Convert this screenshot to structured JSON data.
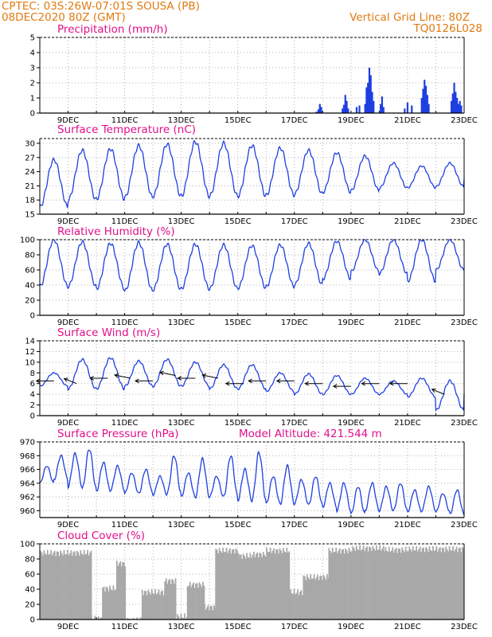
{
  "header": {
    "line1_left": "CPTEC:  03S:26W-07:01S  SOUSA (PB)",
    "line2_left": "08DEC2020 80Z (GMT)",
    "line1_right": "Vertical Grid Line: 80Z",
    "line2_right": "TQ0126L028"
  },
  "colors": {
    "header": "#e07a10",
    "panel_title": "#e0108a",
    "series": "#1f3fe0",
    "cloud": "#a8a8a8",
    "grid": "#b0b0b0"
  },
  "chart_data": [
    {
      "id": "precip",
      "type": "bar",
      "title": "Precipitation (mm/h)",
      "ylim": [
        0,
        5
      ],
      "yticks": [
        0,
        1,
        2,
        3,
        4,
        5
      ],
      "xticks": [
        "9DEC",
        "11DEC",
        "13DEC",
        "15DEC",
        "17DEC",
        "19DEC",
        "21DEC",
        "23DEC"
      ],
      "x_day_range": [
        8,
        23
      ],
      "bars": [
        {
          "d": 17.78,
          "v": 0.1
        },
        {
          "d": 17.85,
          "v": 0.25
        },
        {
          "d": 17.9,
          "v": 0.6
        },
        {
          "d": 17.95,
          "v": 0.4
        },
        {
          "d": 18.7,
          "v": 0.3
        },
        {
          "d": 18.75,
          "v": 0.55
        },
        {
          "d": 18.8,
          "v": 1.2
        },
        {
          "d": 18.85,
          "v": 0.8
        },
        {
          "d": 18.9,
          "v": 0.3
        },
        {
          "d": 19.2,
          "v": 0.4
        },
        {
          "d": 19.3,
          "v": 0.5
        },
        {
          "d": 19.5,
          "v": 0.6
        },
        {
          "d": 19.55,
          "v": 1.7
        },
        {
          "d": 19.6,
          "v": 2.0
        },
        {
          "d": 19.65,
          "v": 3.0
        },
        {
          "d": 19.7,
          "v": 2.5
        },
        {
          "d": 19.75,
          "v": 1.4
        },
        {
          "d": 19.8,
          "v": 0.8
        },
        {
          "d": 20.05,
          "v": 0.6
        },
        {
          "d": 20.1,
          "v": 1.1
        },
        {
          "d": 20.15,
          "v": 0.4
        },
        {
          "d": 20.9,
          "v": 0.3
        },
        {
          "d": 21.0,
          "v": 0.7
        },
        {
          "d": 21.15,
          "v": 0.5
        },
        {
          "d": 21.5,
          "v": 1.0
        },
        {
          "d": 21.55,
          "v": 1.6
        },
        {
          "d": 21.6,
          "v": 2.2
        },
        {
          "d": 21.65,
          "v": 1.8
        },
        {
          "d": 21.7,
          "v": 1.2
        },
        {
          "d": 21.75,
          "v": 0.6
        },
        {
          "d": 22.55,
          "v": 0.8
        },
        {
          "d": 22.6,
          "v": 1.3
        },
        {
          "d": 22.65,
          "v": 2.0
        },
        {
          "d": 22.7,
          "v": 1.4
        },
        {
          "d": 22.75,
          "v": 1.0
        },
        {
          "d": 22.8,
          "v": 0.6
        },
        {
          "d": 22.85,
          "v": 0.8
        },
        {
          "d": 22.9,
          "v": 0.5
        }
      ]
    },
    {
      "id": "temp",
      "type": "line",
      "title": "Surface Temperature (nC)",
      "ylim": [
        15,
        31
      ],
      "yticks": [
        15,
        18,
        21,
        24,
        27,
        30
      ],
      "xticks": [
        "9DEC",
        "11DEC",
        "13DEC",
        "15DEC",
        "17DEC",
        "19DEC",
        "21DEC",
        "23DEC"
      ],
      "x_day_range": [
        8,
        23
      ],
      "daily": [
        {
          "day": 8,
          "max": 26.5,
          "min": 16.5
        },
        {
          "day": 9,
          "max": 28.5,
          "min": 18.0
        },
        {
          "day": 10,
          "max": 28.8,
          "min": 18.2
        },
        {
          "day": 11,
          "max": 29.5,
          "min": 18.5
        },
        {
          "day": 12,
          "max": 29.8,
          "min": 18.8
        },
        {
          "day": 13,
          "max": 30.3,
          "min": 18.8
        },
        {
          "day": 14,
          "max": 30.0,
          "min": 18.8
        },
        {
          "day": 15,
          "max": 29.5,
          "min": 18.8
        },
        {
          "day": 16,
          "max": 29.0,
          "min": 19.0
        },
        {
          "day": 17,
          "max": 28.5,
          "min": 19.2
        },
        {
          "day": 18,
          "max": 28.0,
          "min": 19.6
        },
        {
          "day": 19,
          "max": 27.3,
          "min": 20.0
        },
        {
          "day": 20,
          "max": 25.8,
          "min": 20.5
        },
        {
          "day": 21,
          "max": 25.2,
          "min": 20.6
        },
        {
          "day": 22,
          "max": 25.8,
          "min": 20.8
        },
        {
          "day": 23,
          "max": 24.5,
          "min": 22.5
        }
      ]
    },
    {
      "id": "rh",
      "type": "line",
      "title": "Relative Humidity (%)",
      "ylim": [
        0,
        100
      ],
      "yticks": [
        0,
        20,
        40,
        60,
        80,
        100
      ],
      "xticks": [
        "9DEC",
        "11DEC",
        "13DEC",
        "15DEC",
        "17DEC",
        "19DEC",
        "21DEC",
        "23DEC"
      ],
      "x_day_range": [
        8,
        23
      ],
      "daily": [
        {
          "day": 8,
          "max": 100,
          "min": 38
        },
        {
          "day": 9,
          "max": 97,
          "min": 38
        },
        {
          "day": 10,
          "max": 95,
          "min": 35
        },
        {
          "day": 11,
          "max": 96,
          "min": 32
        },
        {
          "day": 12,
          "max": 94,
          "min": 34
        },
        {
          "day": 13,
          "max": 94,
          "min": 35
        },
        {
          "day": 14,
          "max": 93,
          "min": 35
        },
        {
          "day": 15,
          "max": 92,
          "min": 36
        },
        {
          "day": 16,
          "max": 93,
          "min": 38
        },
        {
          "day": 17,
          "max": 95,
          "min": 40
        },
        {
          "day": 18,
          "max": 98,
          "min": 48
        },
        {
          "day": 19,
          "max": 100,
          "min": 58
        },
        {
          "day": 20,
          "max": 100,
          "min": 55
        },
        {
          "day": 21,
          "max": 100,
          "min": 45
        },
        {
          "day": 22,
          "max": 100,
          "min": 60
        },
        {
          "day": 23,
          "max": 96,
          "min": 62
        }
      ]
    },
    {
      "id": "wind",
      "type": "line",
      "title": "Surface Wind (m/s)",
      "ylim": [
        0,
        14
      ],
      "yticks": [
        0,
        2,
        4,
        6,
        8,
        10,
        12,
        14
      ],
      "xticks": [
        "9DEC",
        "11DEC",
        "13DEC",
        "15DEC",
        "17DEC",
        "19DEC",
        "21DEC",
        "23DEC"
      ],
      "x_day_range": [
        8,
        23
      ],
      "daily": [
        {
          "day": 8,
          "max": 8.0,
          "min": 5.5
        },
        {
          "day": 9,
          "max": 10.5,
          "min": 5.0
        },
        {
          "day": 10,
          "max": 10.8,
          "min": 5.0
        },
        {
          "day": 11,
          "max": 10.2,
          "min": 5.5
        },
        {
          "day": 12,
          "max": 10.5,
          "min": 5.5
        },
        {
          "day": 13,
          "max": 10.0,
          "min": 5.5
        },
        {
          "day": 14,
          "max": 9.5,
          "min": 5.0
        },
        {
          "day": 15,
          "max": 9.5,
          "min": 5.0
        },
        {
          "day": 16,
          "max": 8.0,
          "min": 4.5
        },
        {
          "day": 17,
          "max": 7.8,
          "min": 4.0
        },
        {
          "day": 18,
          "max": 7.5,
          "min": 4.0
        },
        {
          "day": 19,
          "max": 7.0,
          "min": 4.0
        },
        {
          "day": 20,
          "max": 6.5,
          "min": 4.0
        },
        {
          "day": 21,
          "max": 7.0,
          "min": 3.5
        },
        {
          "day": 22,
          "max": 6.5,
          "min": 1.0
        },
        {
          "day": 23,
          "max": 6.0,
          "min": 4.0
        }
      ],
      "vectors": [
        {
          "d": 8.5,
          "v": 6.5,
          "dir": "W"
        },
        {
          "d": 9.3,
          "v": 6.0,
          "dir": "SW"
        },
        {
          "d": 10.4,
          "v": 7.0,
          "dir": "W"
        },
        {
          "d": 11.2,
          "v": 7.0,
          "dir": "NW"
        },
        {
          "d": 12.0,
          "v": 6.5,
          "dir": "W"
        },
        {
          "d": 12.8,
          "v": 7.5,
          "dir": "NW"
        },
        {
          "d": 13.5,
          "v": 7.0,
          "dir": "W"
        },
        {
          "d": 14.3,
          "v": 7.0,
          "dir": "NW"
        },
        {
          "d": 15.2,
          "v": 6.0,
          "dir": "W"
        },
        {
          "d": 16.0,
          "v": 6.5,
          "dir": "W"
        },
        {
          "d": 17.0,
          "v": 6.5,
          "dir": "W"
        },
        {
          "d": 18.0,
          "v": 6.0,
          "dir": "W"
        },
        {
          "d": 19.0,
          "v": 5.5,
          "dir": "W"
        },
        {
          "d": 20.0,
          "v": 6.0,
          "dir": "W"
        },
        {
          "d": 21.0,
          "v": 6.0,
          "dir": "W"
        },
        {
          "d": 22.3,
          "v": 4.0,
          "dir": "SW"
        }
      ]
    },
    {
      "id": "pres",
      "type": "line",
      "title": "Surface Pressure (hPa)",
      "annotation": "Model Altitude: 421.544 m",
      "ylim": [
        959,
        970
      ],
      "yticks": [
        960,
        962,
        964,
        966,
        968,
        970
      ],
      "xticks": [
        "9DEC",
        "11DEC",
        "13DEC",
        "15DEC",
        "17DEC",
        "19DEC",
        "21DEC",
        "23DEC"
      ],
      "x_day_range": [
        8,
        23
      ],
      "semi_daily": [
        {
          "day": 8.0,
          "max": 966.5,
          "min": 964.0
        },
        {
          "day": 8.5,
          "max": 968.0,
          "min": 964.5
        },
        {
          "day": 9.0,
          "max": 968.3,
          "min": 963.5
        },
        {
          "day": 9.5,
          "max": 969.0,
          "min": 963.2
        },
        {
          "day": 10.0,
          "max": 967.0,
          "min": 962.8
        },
        {
          "day": 10.5,
          "max": 966.5,
          "min": 963.0
        },
        {
          "day": 11.0,
          "max": 965.5,
          "min": 962.5
        },
        {
          "day": 11.5,
          "max": 966.0,
          "min": 962.5
        },
        {
          "day": 12.0,
          "max": 965.0,
          "min": 962.3
        },
        {
          "day": 12.5,
          "max": 968.0,
          "min": 962.5
        },
        {
          "day": 13.0,
          "max": 965.5,
          "min": 962.0
        },
        {
          "day": 13.5,
          "max": 967.5,
          "min": 962.0
        },
        {
          "day": 14.0,
          "max": 965.0,
          "min": 962.0
        },
        {
          "day": 14.5,
          "max": 968.0,
          "min": 962.0
        },
        {
          "day": 15.0,
          "max": 966.0,
          "min": 961.5
        },
        {
          "day": 15.5,
          "max": 968.5,
          "min": 961.5
        },
        {
          "day": 16.0,
          "max": 965.0,
          "min": 961.0
        },
        {
          "day": 16.5,
          "max": 966.5,
          "min": 961.0
        },
        {
          "day": 17.0,
          "max": 964.5,
          "min": 961.0
        },
        {
          "day": 17.5,
          "max": 965.0,
          "min": 960.8
        },
        {
          "day": 18.0,
          "max": 964.0,
          "min": 960.5
        },
        {
          "day": 18.5,
          "max": 964.0,
          "min": 960.0
        },
        {
          "day": 19.0,
          "max": 963.5,
          "min": 959.5
        },
        {
          "day": 19.5,
          "max": 964.0,
          "min": 960.0
        },
        {
          "day": 20.0,
          "max": 963.5,
          "min": 960.0
        },
        {
          "day": 20.5,
          "max": 964.0,
          "min": 960.0
        },
        {
          "day": 21.0,
          "max": 963.0,
          "min": 959.8
        },
        {
          "day": 21.5,
          "max": 963.5,
          "min": 960.0
        },
        {
          "day": 22.0,
          "max": 962.5,
          "min": 959.8
        },
        {
          "day": 22.5,
          "max": 963.0,
          "min": 959.5
        },
        {
          "day": 23.0,
          "max": 963.5,
          "min": 959.5
        }
      ]
    },
    {
      "id": "cloud",
      "type": "bar",
      "title": "Cloud Cover (%)",
      "ylim": [
        0,
        100
      ],
      "yticks": [
        0,
        20,
        40,
        60,
        80,
        100
      ],
      "xticks": [
        "9DEC",
        "11DEC",
        "13DEC",
        "15DEC",
        "17DEC",
        "19DEC",
        "21DEC",
        "23DEC"
      ],
      "x_day_range": [
        8,
        23
      ],
      "segments": [
        {
          "from": 8.0,
          "to": 9.8,
          "level": 92
        },
        {
          "from": 9.8,
          "to": 10.2,
          "level": 5
        },
        {
          "from": 10.2,
          "to": 10.7,
          "level": 45
        },
        {
          "from": 10.7,
          "to": 11.0,
          "level": 78
        },
        {
          "from": 11.0,
          "to": 11.6,
          "level": 3
        },
        {
          "from": 11.6,
          "to": 12.4,
          "level": 40
        },
        {
          "from": 12.4,
          "to": 12.8,
          "level": 55
        },
        {
          "from": 12.8,
          "to": 13.2,
          "level": 8
        },
        {
          "from": 13.2,
          "to": 13.8,
          "level": 50
        },
        {
          "from": 13.8,
          "to": 14.2,
          "level": 20
        },
        {
          "from": 14.2,
          "to": 15.0,
          "level": 95
        },
        {
          "from": 15.0,
          "to": 15.5,
          "level": 88
        },
        {
          "from": 15.5,
          "to": 16.0,
          "level": 90
        },
        {
          "from": 16.0,
          "to": 16.8,
          "level": 95
        },
        {
          "from": 16.8,
          "to": 17.3,
          "level": 40
        },
        {
          "from": 17.3,
          "to": 18.2,
          "level": 60
        },
        {
          "from": 18.2,
          "to": 19.0,
          "level": 95
        },
        {
          "from": 19.0,
          "to": 20.2,
          "level": 98
        },
        {
          "from": 20.2,
          "to": 21.0,
          "level": 96
        },
        {
          "from": 21.0,
          "to": 22.0,
          "level": 97
        },
        {
          "from": 22.0,
          "to": 23.0,
          "level": 97
        }
      ]
    }
  ]
}
